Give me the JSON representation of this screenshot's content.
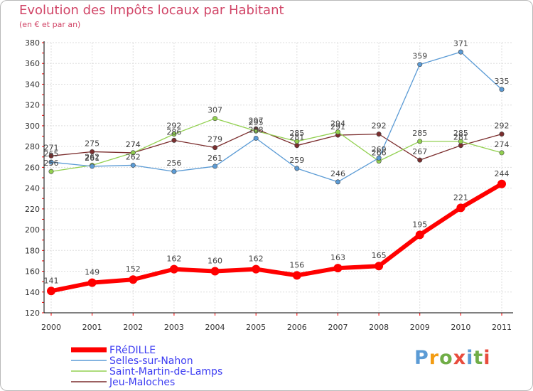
{
  "chart_data": {
    "type": "line",
    "title": "Evolution des Impôts locaux par Habitant",
    "subtitle": "(en € et par an)",
    "xlabel": "",
    "ylabel": "",
    "ylim": [
      120,
      380
    ],
    "yticks": [
      120,
      140,
      160,
      180,
      200,
      220,
      240,
      260,
      280,
      300,
      320,
      340,
      360,
      380
    ],
    "categories": [
      "2000",
      "2001",
      "2002",
      "2003",
      "2004",
      "2005",
      "2006",
      "2007",
      "2008",
      "2009",
      "2010",
      "2011"
    ],
    "series": [
      {
        "name": "FRéDILLE",
        "color": "#ff0000",
        "values": [
          141,
          149,
          152,
          162,
          160,
          162,
          156,
          163,
          165,
          195,
          221,
          244
        ],
        "labels": [
          "141",
          "149",
          "152",
          "162",
          "160",
          "162",
          "156",
          "163",
          "165",
          "195",
          "221",
          "244"
        ]
      },
      {
        "name": "Selles-sur-Nahon",
        "color": "#5b9bd5",
        "values": [
          265,
          261,
          262,
          256,
          261,
          288,
          259,
          246,
          269,
          359,
          371,
          335
        ],
        "labels": [
          "265",
          "261",
          "262",
          "256",
          "261",
          "288",
          "259",
          "246",
          "269",
          "359",
          "371",
          "335"
        ]
      },
      {
        "name": "Saint-Martin-de-Lamps",
        "color": "#92d050",
        "values": [
          256,
          262,
          274,
          292,
          307,
          295,
          285,
          294,
          266,
          285,
          285,
          274
        ],
        "labels": [
          "256",
          "262",
          "274",
          "292",
          "307",
          "295",
          "285",
          "294",
          "266",
          "285",
          "285",
          "274"
        ]
      },
      {
        "name": "Jeu-Maloches",
        "color": "#7b2d2d",
        "values": [
          271,
          275,
          274,
          286,
          279,
          297,
          281,
          291,
          292,
          267,
          281,
          292
        ],
        "labels": [
          "271",
          "275",
          "274",
          "286",
          "279",
          "297",
          "281",
          "291",
          "292",
          "267",
          "281",
          "292"
        ]
      }
    ],
    "grid": true,
    "legend_position": "bottom-left"
  },
  "branding": {
    "logo_letters": [
      "P",
      "r",
      "o",
      "x",
      "i",
      "t",
      "i"
    ],
    "logo_colors": [
      "#5b9bd5",
      "#f39c12",
      "#70ad47",
      "#e84c3d",
      "#5b9bd5",
      "#70ad47",
      "#e84c3d"
    ]
  }
}
